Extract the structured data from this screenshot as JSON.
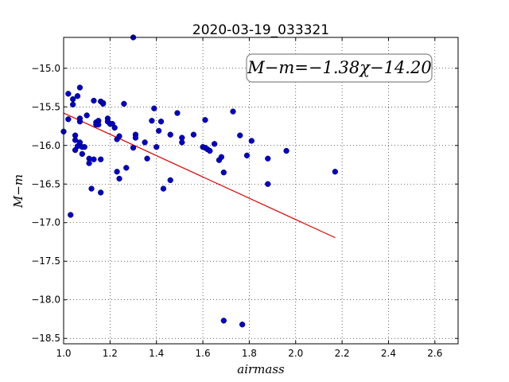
{
  "chart_data": {
    "type": "scatter",
    "title": "2020-03-19_033321",
    "xlabel": "airmass",
    "ylabel": "M−m",
    "xlim": [
      1.0,
      2.7
    ],
    "ylim": [
      -18.57,
      -14.6
    ],
    "y_inverted": true,
    "x_ticks": [
      1.0,
      1.2,
      1.4,
      1.6,
      1.8,
      2.0,
      2.2,
      2.4,
      2.6
    ],
    "x_tick_labels": [
      "1.0",
      "1.2",
      "1.4",
      "1.6",
      "1.8",
      "2.0",
      "2.2",
      "2.4",
      "2.6"
    ],
    "y_ticks": [
      -15.0,
      -15.5,
      -16.0,
      -16.5,
      -17.0,
      -17.5,
      -18.0,
      -18.5
    ],
    "y_tick_labels": [
      "−15.0",
      "−15.5",
      "−16.0",
      "−16.5",
      "−17.0",
      "−17.5",
      "−18.0",
      "−18.5"
    ],
    "grid": true,
    "annotation": "M−m=−1.38χ−14.20",
    "point_color": "#0000cc",
    "fit_color": "#dd0000",
    "fit": {
      "slope": -1.38,
      "intercept": -14.2,
      "x_range": [
        1.0,
        2.17
      ]
    },
    "points": [
      [
        1.0,
        -15.82
      ],
      [
        1.02,
        -15.33
      ],
      [
        1.02,
        -15.66
      ],
      [
        1.03,
        -16.9
      ],
      [
        1.04,
        -15.47
      ],
      [
        1.04,
        -15.4
      ],
      [
        1.05,
        -15.87
      ],
      [
        1.05,
        -15.93
      ],
      [
        1.05,
        -16.06
      ],
      [
        1.06,
        -15.36
      ],
      [
        1.06,
        -16.01
      ],
      [
        1.07,
        -15.25
      ],
      [
        1.07,
        -15.65
      ],
      [
        1.07,
        -15.69
      ],
      [
        1.07,
        -15.96
      ],
      [
        1.08,
        -16.02
      ],
      [
        1.08,
        -16.11
      ],
      [
        1.09,
        -16.02
      ],
      [
        1.1,
        -15.61
      ],
      [
        1.11,
        -16.17
      ],
      [
        1.11,
        -16.23
      ],
      [
        1.12,
        -16.56
      ],
      [
        1.13,
        -15.42
      ],
      [
        1.13,
        -16.18
      ],
      [
        1.14,
        -15.7
      ],
      [
        1.14,
        -15.73
      ],
      [
        1.15,
        -15.68
      ],
      [
        1.15,
        -15.73
      ],
      [
        1.16,
        -15.43
      ],
      [
        1.16,
        -16.18
      ],
      [
        1.16,
        -16.61
      ],
      [
        1.17,
        -15.45
      ],
      [
        1.17,
        -15.46
      ],
      [
        1.19,
        -15.65
      ],
      [
        1.19,
        -15.69
      ],
      [
        1.2,
        -15.72
      ],
      [
        1.21,
        -15.72
      ],
      [
        1.22,
        -15.77
      ],
      [
        1.23,
        -15.92
      ],
      [
        1.23,
        -16.34
      ],
      [
        1.24,
        -15.88
      ],
      [
        1.24,
        -16.43
      ],
      [
        1.26,
        -15.46
      ],
      [
        1.27,
        -16.29
      ],
      [
        1.3,
        -14.6
      ],
      [
        1.3,
        -16.03
      ],
      [
        1.31,
        -15.86
      ],
      [
        1.31,
        -15.9
      ],
      [
        1.35,
        -15.96
      ],
      [
        1.36,
        -16.17
      ],
      [
        1.38,
        -15.68
      ],
      [
        1.39,
        -15.52
      ],
      [
        1.4,
        -16.02
      ],
      [
        1.41,
        -15.81
      ],
      [
        1.42,
        -15.69
      ],
      [
        1.43,
        -16.56
      ],
      [
        1.46,
        -15.86
      ],
      [
        1.46,
        -16.45
      ],
      [
        1.49,
        -15.58
      ],
      [
        1.51,
        -15.9
      ],
      [
        1.51,
        -15.96
      ],
      [
        1.56,
        -15.86
      ],
      [
        1.6,
        -16.02
      ],
      [
        1.61,
        -15.67
      ],
      [
        1.61,
        -16.03
      ],
      [
        1.62,
        -16.05
      ],
      [
        1.63,
        -16.07
      ],
      [
        1.65,
        -15.98
      ],
      [
        1.67,
        -16.19
      ],
      [
        1.68,
        -16.15
      ],
      [
        1.69,
        -16.35
      ],
      [
        1.69,
        -18.27
      ],
      [
        1.73,
        -15.56
      ],
      [
        1.76,
        -15.87
      ],
      [
        1.77,
        -18.32
      ],
      [
        1.79,
        -16.13
      ],
      [
        1.81,
        -15.94
      ],
      [
        1.88,
        -16.5
      ],
      [
        1.88,
        -16.17
      ],
      [
        1.96,
        -16.07
      ],
      [
        2.17,
        -16.34
      ]
    ]
  }
}
